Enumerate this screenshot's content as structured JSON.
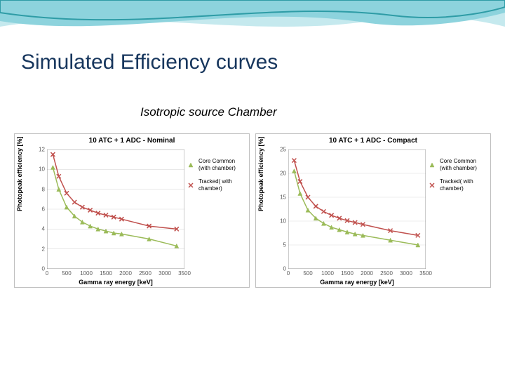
{
  "title": "Simulated Efficiency curves",
  "title_color": "#17365d",
  "subtitle": "Isotropic source Chamber",
  "banner": {
    "wave1_color": "#2e9ca6",
    "wave2_color": "#8dd3dd",
    "wave3_color": "#c5e9ee"
  },
  "charts": [
    {
      "title": "10 ATC + 1 ADC - Nominal",
      "xlabel": "Gamma ray energy [keV]",
      "ylabel": "Photopeak efficiency [%]",
      "xlim": [
        0,
        3500
      ],
      "xtick_step": 500,
      "ylim": [
        0,
        12
      ],
      "ytick_step": 2,
      "background": "#ffffff",
      "grid_color": "#d9d9d9",
      "axis_color": "#808080",
      "label_fontsize": 9,
      "tick_fontsize": 8,
      "series": [
        {
          "name": "Core Common (with chamber)",
          "type": "scatter-line",
          "marker": "triangle",
          "color": "#9bbb59",
          "line_width": 1.5,
          "marker_size": 6,
          "x": [
            150,
            300,
            500,
            700,
            900,
            1100,
            1300,
            1500,
            1700,
            1900,
            2600,
            3300
          ],
          "y": [
            10.2,
            8.0,
            6.2,
            5.3,
            4.7,
            4.3,
            4.0,
            3.8,
            3.6,
            3.5,
            3.0,
            2.3
          ]
        },
        {
          "name": "Tracked( with chamber)",
          "type": "scatter-line",
          "marker": "x",
          "color": "#c0504d",
          "line_width": 1.5,
          "marker_size": 6,
          "x": [
            150,
            300,
            500,
            700,
            900,
            1100,
            1300,
            1500,
            1700,
            1900,
            2600,
            3300
          ],
          "y": [
            11.5,
            9.3,
            7.6,
            6.7,
            6.2,
            5.9,
            5.6,
            5.4,
            5.2,
            5.0,
            4.3,
            4.0
          ]
        }
      ]
    },
    {
      "title": "10 ATC + 1 ADC - Compact",
      "xlabel": "Gamma ray energy [keV]",
      "ylabel": "Photopeak efficiency [%]",
      "xlim": [
        0,
        3500
      ],
      "xtick_step": 500,
      "ylim": [
        0,
        25
      ],
      "ytick_step": 5,
      "background": "#ffffff",
      "grid_color": "#d9d9d9",
      "axis_color": "#808080",
      "label_fontsize": 9,
      "tick_fontsize": 8,
      "series": [
        {
          "name": "Core Common (with chamber)",
          "type": "scatter-line",
          "marker": "triangle",
          "color": "#9bbb59",
          "line_width": 1.5,
          "marker_size": 6,
          "x": [
            150,
            300,
            500,
            700,
            900,
            1100,
            1300,
            1500,
            1700,
            1900,
            2600,
            3300
          ],
          "y": [
            20.5,
            15.8,
            12.3,
            10.6,
            9.5,
            8.7,
            8.2,
            7.7,
            7.3,
            7.0,
            6.0,
            5.0
          ]
        },
        {
          "name": "Tracked( with chamber)",
          "type": "scatter-line",
          "marker": "x",
          "color": "#c0504d",
          "line_width": 1.5,
          "marker_size": 6,
          "x": [
            150,
            300,
            500,
            700,
            900,
            1100,
            1300,
            1500,
            1700,
            1900,
            2600,
            3300
          ],
          "y": [
            22.7,
            18.3,
            15.0,
            13.1,
            12.0,
            11.2,
            10.6,
            10.1,
            9.7,
            9.3,
            8.0,
            7.0
          ]
        }
      ]
    }
  ]
}
